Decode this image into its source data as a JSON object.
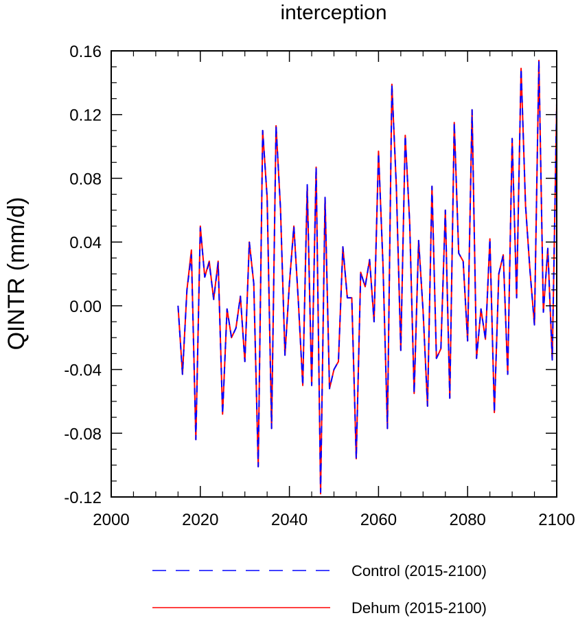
{
  "chart_data": {
    "type": "line",
    "title": "interception",
    "xlabel": "",
    "ylabel": "QINTR  (mm/d)",
    "xlim": [
      2000,
      2100
    ],
    "ylim": [
      -0.12,
      0.16
    ],
    "xticks": [
      2000,
      2020,
      2040,
      2060,
      2080,
      2100
    ],
    "yticks": [
      -0.12,
      -0.08,
      -0.04,
      0.0,
      0.04,
      0.08,
      0.12,
      0.16
    ],
    "ytick_labels": [
      "-0.12",
      "-0.08",
      "-0.04",
      "0.00",
      "0.04",
      "0.08",
      "0.12",
      "0.16"
    ],
    "xtick_labels": [
      "2000",
      "2020",
      "2040",
      "2060",
      "2080",
      "2100"
    ],
    "grid": false,
    "legend_position": "bottom",
    "x": [
      2015,
      2016,
      2017,
      2018,
      2019,
      2020,
      2021,
      2022,
      2023,
      2024,
      2025,
      2026,
      2027,
      2028,
      2029,
      2030,
      2031,
      2032,
      2033,
      2034,
      2035,
      2036,
      2037,
      2038,
      2039,
      2040,
      2041,
      2042,
      2043,
      2044,
      2045,
      2046,
      2047,
      2048,
      2049,
      2050,
      2051,
      2052,
      2053,
      2054,
      2055,
      2056,
      2057,
      2058,
      2059,
      2060,
      2061,
      2062,
      2063,
      2064,
      2065,
      2066,
      2067,
      2068,
      2069,
      2070,
      2071,
      2072,
      2073,
      2074,
      2075,
      2076,
      2077,
      2078,
      2079,
      2080,
      2081,
      2082,
      2083,
      2084,
      2085,
      2086,
      2087,
      2088,
      2089,
      2090,
      2091,
      2092,
      2093,
      2094,
      2095,
      2096,
      2097,
      2098,
      2099,
      2100
    ],
    "series": [
      {
        "name": "Control (2015-2100)",
        "color": "#0000ff",
        "style": "dashed",
        "values": [
          0.0,
          -0.043,
          0.01,
          0.032,
          -0.084,
          0.049,
          0.018,
          0.027,
          0.004,
          0.027,
          -0.068,
          -0.002,
          -0.02,
          -0.014,
          0.006,
          -0.035,
          0.04,
          0.014,
          -0.101,
          0.11,
          0.068,
          -0.077,
          0.113,
          0.061,
          -0.031,
          0.014,
          0.05,
          0.003,
          -0.05,
          0.076,
          -0.05,
          0.087,
          -0.117,
          0.068,
          -0.052,
          -0.04,
          -0.035,
          0.037,
          0.005,
          0.005,
          -0.096,
          0.021,
          0.012,
          0.029,
          -0.01,
          0.096,
          0.026,
          -0.077,
          0.139,
          0.075,
          -0.028,
          0.107,
          0.052,
          -0.055,
          0.041,
          -0.003,
          -0.063,
          0.075,
          -0.033,
          -0.027,
          0.06,
          -0.058,
          0.115,
          0.033,
          0.028,
          -0.022,
          0.123,
          -0.033,
          -0.002,
          -0.021,
          0.042,
          -0.067,
          0.02,
          0.032,
          -0.043,
          0.105,
          0.005,
          0.149,
          0.063,
          0.022,
          -0.012,
          0.154,
          -0.004,
          0.036,
          -0.034,
          0.127
        ]
      },
      {
        "name": "Dehum (2015-2100)",
        "color": "#ff0000",
        "style": "solid",
        "values": [
          0.0,
          -0.043,
          0.01,
          0.035,
          -0.084,
          0.05,
          0.018,
          0.028,
          0.004,
          0.028,
          -0.068,
          -0.002,
          -0.02,
          -0.014,
          0.006,
          -0.035,
          0.04,
          0.014,
          -0.101,
          0.11,
          0.068,
          -0.077,
          0.113,
          0.061,
          -0.031,
          0.014,
          0.05,
          0.003,
          -0.05,
          0.075,
          -0.05,
          0.087,
          -0.118,
          0.068,
          -0.052,
          -0.04,
          -0.035,
          0.037,
          0.005,
          0.005,
          -0.096,
          0.021,
          0.012,
          0.029,
          -0.01,
          0.097,
          0.026,
          -0.077,
          0.139,
          0.075,
          -0.028,
          0.107,
          0.052,
          -0.055,
          0.041,
          -0.003,
          -0.063,
          0.075,
          -0.033,
          -0.027,
          0.06,
          -0.058,
          0.115,
          0.033,
          0.028,
          -0.022,
          0.123,
          -0.033,
          -0.002,
          -0.021,
          0.042,
          -0.067,
          0.02,
          0.032,
          -0.043,
          0.105,
          0.005,
          0.149,
          0.063,
          0.022,
          -0.012,
          0.154,
          -0.004,
          0.036,
          -0.034,
          0.127
        ]
      }
    ]
  }
}
